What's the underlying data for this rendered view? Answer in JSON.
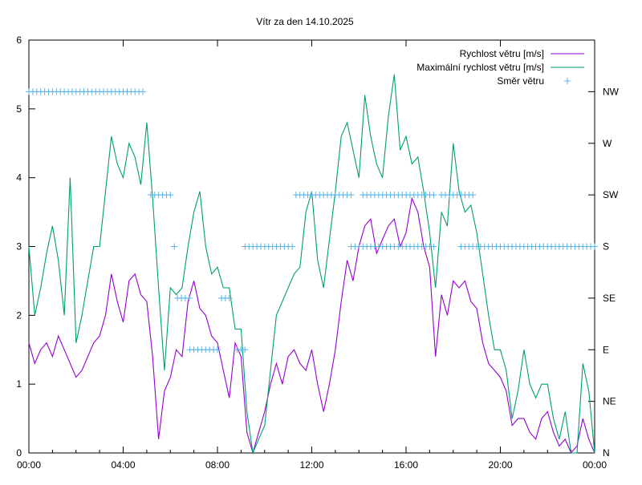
{
  "chart_data": {
    "type": "line",
    "title": "Vítr za den 14.10.2025",
    "xlabel": "",
    "ylabel": "",
    "xlim": [
      0,
      24
    ],
    "ylim": [
      0,
      6
    ],
    "x_ticks": [
      {
        "v": 0,
        "label": "00:00"
      },
      {
        "v": 4,
        "label": "04:00"
      },
      {
        "v": 8,
        "label": "08:00"
      },
      {
        "v": 12,
        "label": "12:00"
      },
      {
        "v": 16,
        "label": "16:00"
      },
      {
        "v": 20,
        "label": "20:00"
      },
      {
        "v": 24,
        "label": "00:00"
      }
    ],
    "y_ticks": [
      {
        "v": 0,
        "label": "0"
      },
      {
        "v": 1,
        "label": "1"
      },
      {
        "v": 2,
        "label": "2"
      },
      {
        "v": 3,
        "label": "3"
      },
      {
        "v": 4,
        "label": "4"
      },
      {
        "v": 5,
        "label": "5"
      },
      {
        "v": 6,
        "label": "6"
      }
    ],
    "y2_ticks": [
      {
        "v": 0,
        "label": "N"
      },
      {
        "v": 0.75,
        "label": "NE"
      },
      {
        "v": 1.5,
        "label": "E"
      },
      {
        "v": 2.25,
        "label": "SE"
      },
      {
        "v": 3,
        "label": "S"
      },
      {
        "v": 3.75,
        "label": "SW"
      },
      {
        "v": 4.5,
        "label": "W"
      },
      {
        "v": 5.25,
        "label": "NW"
      }
    ],
    "legend_position": "top-right",
    "grid": false,
    "series": [
      {
        "name": "Rychlost větru [m/s]",
        "color": "#9400d3",
        "style": "line",
        "x": [
          0,
          0.25,
          0.5,
          0.75,
          1,
          1.25,
          1.5,
          1.75,
          2,
          2.25,
          2.5,
          2.75,
          3,
          3.25,
          3.5,
          3.75,
          4,
          4.25,
          4.5,
          4.75,
          5,
          5.25,
          5.5,
          5.75,
          6,
          6.25,
          6.5,
          6.75,
          7,
          7.25,
          7.5,
          7.75,
          8,
          8.25,
          8.5,
          8.75,
          9,
          9.25,
          9.5,
          9.75,
          10,
          10.25,
          10.5,
          10.75,
          11,
          11.25,
          11.5,
          11.75,
          12,
          12.25,
          12.5,
          12.75,
          13,
          13.25,
          13.5,
          13.75,
          14,
          14.25,
          14.5,
          14.75,
          15,
          15.25,
          15.5,
          15.75,
          16,
          16.25,
          16.5,
          16.75,
          17,
          17.25,
          17.5,
          17.75,
          18,
          18.25,
          18.5,
          18.75,
          19,
          19.25,
          19.5,
          19.75,
          20,
          20.25,
          20.5,
          20.75,
          21,
          21.25,
          21.5,
          21.75,
          22,
          22.25,
          22.5,
          22.75,
          23,
          23.25,
          23.5,
          23.75,
          24
        ],
        "y": [
          1.6,
          1.3,
          1.5,
          1.6,
          1.4,
          1.7,
          1.5,
          1.3,
          1.1,
          1.2,
          1.4,
          1.6,
          1.7,
          2.0,
          2.6,
          2.2,
          1.9,
          2.5,
          2.6,
          2.3,
          2.2,
          1.4,
          0.2,
          0.9,
          1.1,
          1.5,
          1.4,
          2.2,
          2.5,
          2.1,
          2.0,
          1.7,
          1.6,
          1.2,
          0.8,
          1.6,
          1.4,
          0.3,
          0.0,
          0.3,
          0.6,
          1.0,
          1.3,
          1.0,
          1.4,
          1.5,
          1.3,
          1.2,
          1.5,
          1.0,
          0.6,
          1.0,
          1.5,
          2.2,
          2.8,
          2.5,
          3.0,
          3.3,
          3.4,
          2.9,
          3.1,
          3.3,
          3.4,
          3.0,
          3.2,
          3.7,
          3.5,
          3.0,
          2.7,
          1.4,
          2.3,
          2.0,
          2.5,
          2.4,
          2.5,
          2.2,
          2.1,
          1.6,
          1.3,
          1.2,
          1.1,
          0.9,
          0.4,
          0.5,
          0.5,
          0.3,
          0.2,
          0.5,
          0.6,
          0.3,
          0.1,
          0.2,
          0.0,
          0.1,
          0.5,
          0.2,
          0.0
        ]
      },
      {
        "name": "Maximální rychlost větru [m/s]",
        "color": "#009e73",
        "style": "line",
        "x": [
          0,
          0.25,
          0.5,
          0.75,
          1,
          1.25,
          1.5,
          1.75,
          2,
          2.25,
          2.5,
          2.75,
          3,
          3.25,
          3.5,
          3.75,
          4,
          4.25,
          4.5,
          4.75,
          5,
          5.25,
          5.5,
          5.75,
          6,
          6.25,
          6.5,
          6.75,
          7,
          7.25,
          7.5,
          7.75,
          8,
          8.25,
          8.5,
          8.75,
          9,
          9.25,
          9.5,
          9.75,
          10,
          10.25,
          10.5,
          10.75,
          11,
          11.25,
          11.5,
          11.75,
          12,
          12.25,
          12.5,
          12.75,
          13,
          13.25,
          13.5,
          13.75,
          14,
          14.25,
          14.5,
          14.75,
          15,
          15.25,
          15.5,
          15.75,
          16,
          16.25,
          16.5,
          16.75,
          17,
          17.25,
          17.5,
          17.75,
          18,
          18.25,
          18.5,
          18.75,
          19,
          19.25,
          19.5,
          19.75,
          20,
          20.25,
          20.5,
          20.75,
          21,
          21.25,
          21.5,
          21.75,
          22,
          22.25,
          22.5,
          22.75,
          23,
          23.25,
          23.5,
          23.75,
          24
        ],
        "y": [
          3.0,
          2.0,
          2.4,
          2.9,
          3.3,
          2.8,
          2.0,
          4.0,
          1.6,
          2.0,
          2.5,
          3.0,
          3.0,
          3.8,
          4.6,
          4.2,
          4.0,
          4.5,
          4.3,
          3.9,
          4.8,
          3.7,
          2.4,
          1.2,
          2.4,
          2.3,
          2.4,
          3.0,
          3.5,
          3.8,
          3.0,
          2.6,
          2.7,
          2.4,
          2.4,
          1.8,
          1.8,
          0.6,
          0.0,
          0.2,
          0.4,
          1.2,
          2.0,
          2.2,
          2.4,
          2.6,
          2.7,
          3.5,
          3.8,
          2.8,
          2.4,
          3.1,
          3.8,
          4.6,
          4.8,
          4.4,
          4.0,
          5.2,
          4.6,
          4.2,
          4.0,
          4.9,
          5.5,
          4.4,
          4.6,
          4.2,
          4.3,
          3.8,
          3.2,
          2.4,
          3.5,
          3.3,
          4.5,
          3.8,
          3.5,
          3.6,
          3.2,
          2.6,
          2.0,
          1.5,
          1.5,
          1.2,
          0.5,
          0.9,
          1.5,
          1.0,
          0.8,
          1.0,
          1.0,
          0.5,
          0.2,
          0.6,
          0.0,
          0.0,
          1.3,
          0.9,
          0.0
        ]
      },
      {
        "name": "Směr větru",
        "color": "#56b4e9",
        "style": "points",
        "unit": "direction",
        "step_hours": 0.1667,
        "segments": [
          {
            "from": 0,
            "to": 5.0,
            "dir": "NW",
            "value": 5.25
          },
          {
            "from": 5.17,
            "to": 6.17,
            "dir": "SW",
            "value": 3.75
          },
          {
            "from": 6.17,
            "to": 6.17,
            "dir": "S",
            "value": 3.0
          },
          {
            "from": 6.3,
            "to": 6.83,
            "dir": "SE",
            "value": 2.25
          },
          {
            "from": 6.83,
            "to": 8.0,
            "dir": "E",
            "value": 1.5
          },
          {
            "from": 8.17,
            "to": 8.67,
            "dir": "SE",
            "value": 2.25
          },
          {
            "from": 8.83,
            "to": 9.17,
            "dir": "E",
            "value": 1.5
          },
          {
            "from": 9.17,
            "to": 11.33,
            "dir": "S",
            "value": 3.0
          },
          {
            "from": 11.33,
            "to": 13.67,
            "dir": "SW",
            "value": 3.75
          },
          {
            "from": 13.67,
            "to": 17.33,
            "dir": "S",
            "value": 3.0
          },
          {
            "from": 14.17,
            "to": 17.33,
            "dir": "SW",
            "value": 3.75
          },
          {
            "from": 17.5,
            "to": 19.0,
            "dir": "SW",
            "value": 3.75
          },
          {
            "from": 18.33,
            "to": 24.0,
            "dir": "S",
            "value": 3.0
          }
        ]
      }
    ]
  }
}
